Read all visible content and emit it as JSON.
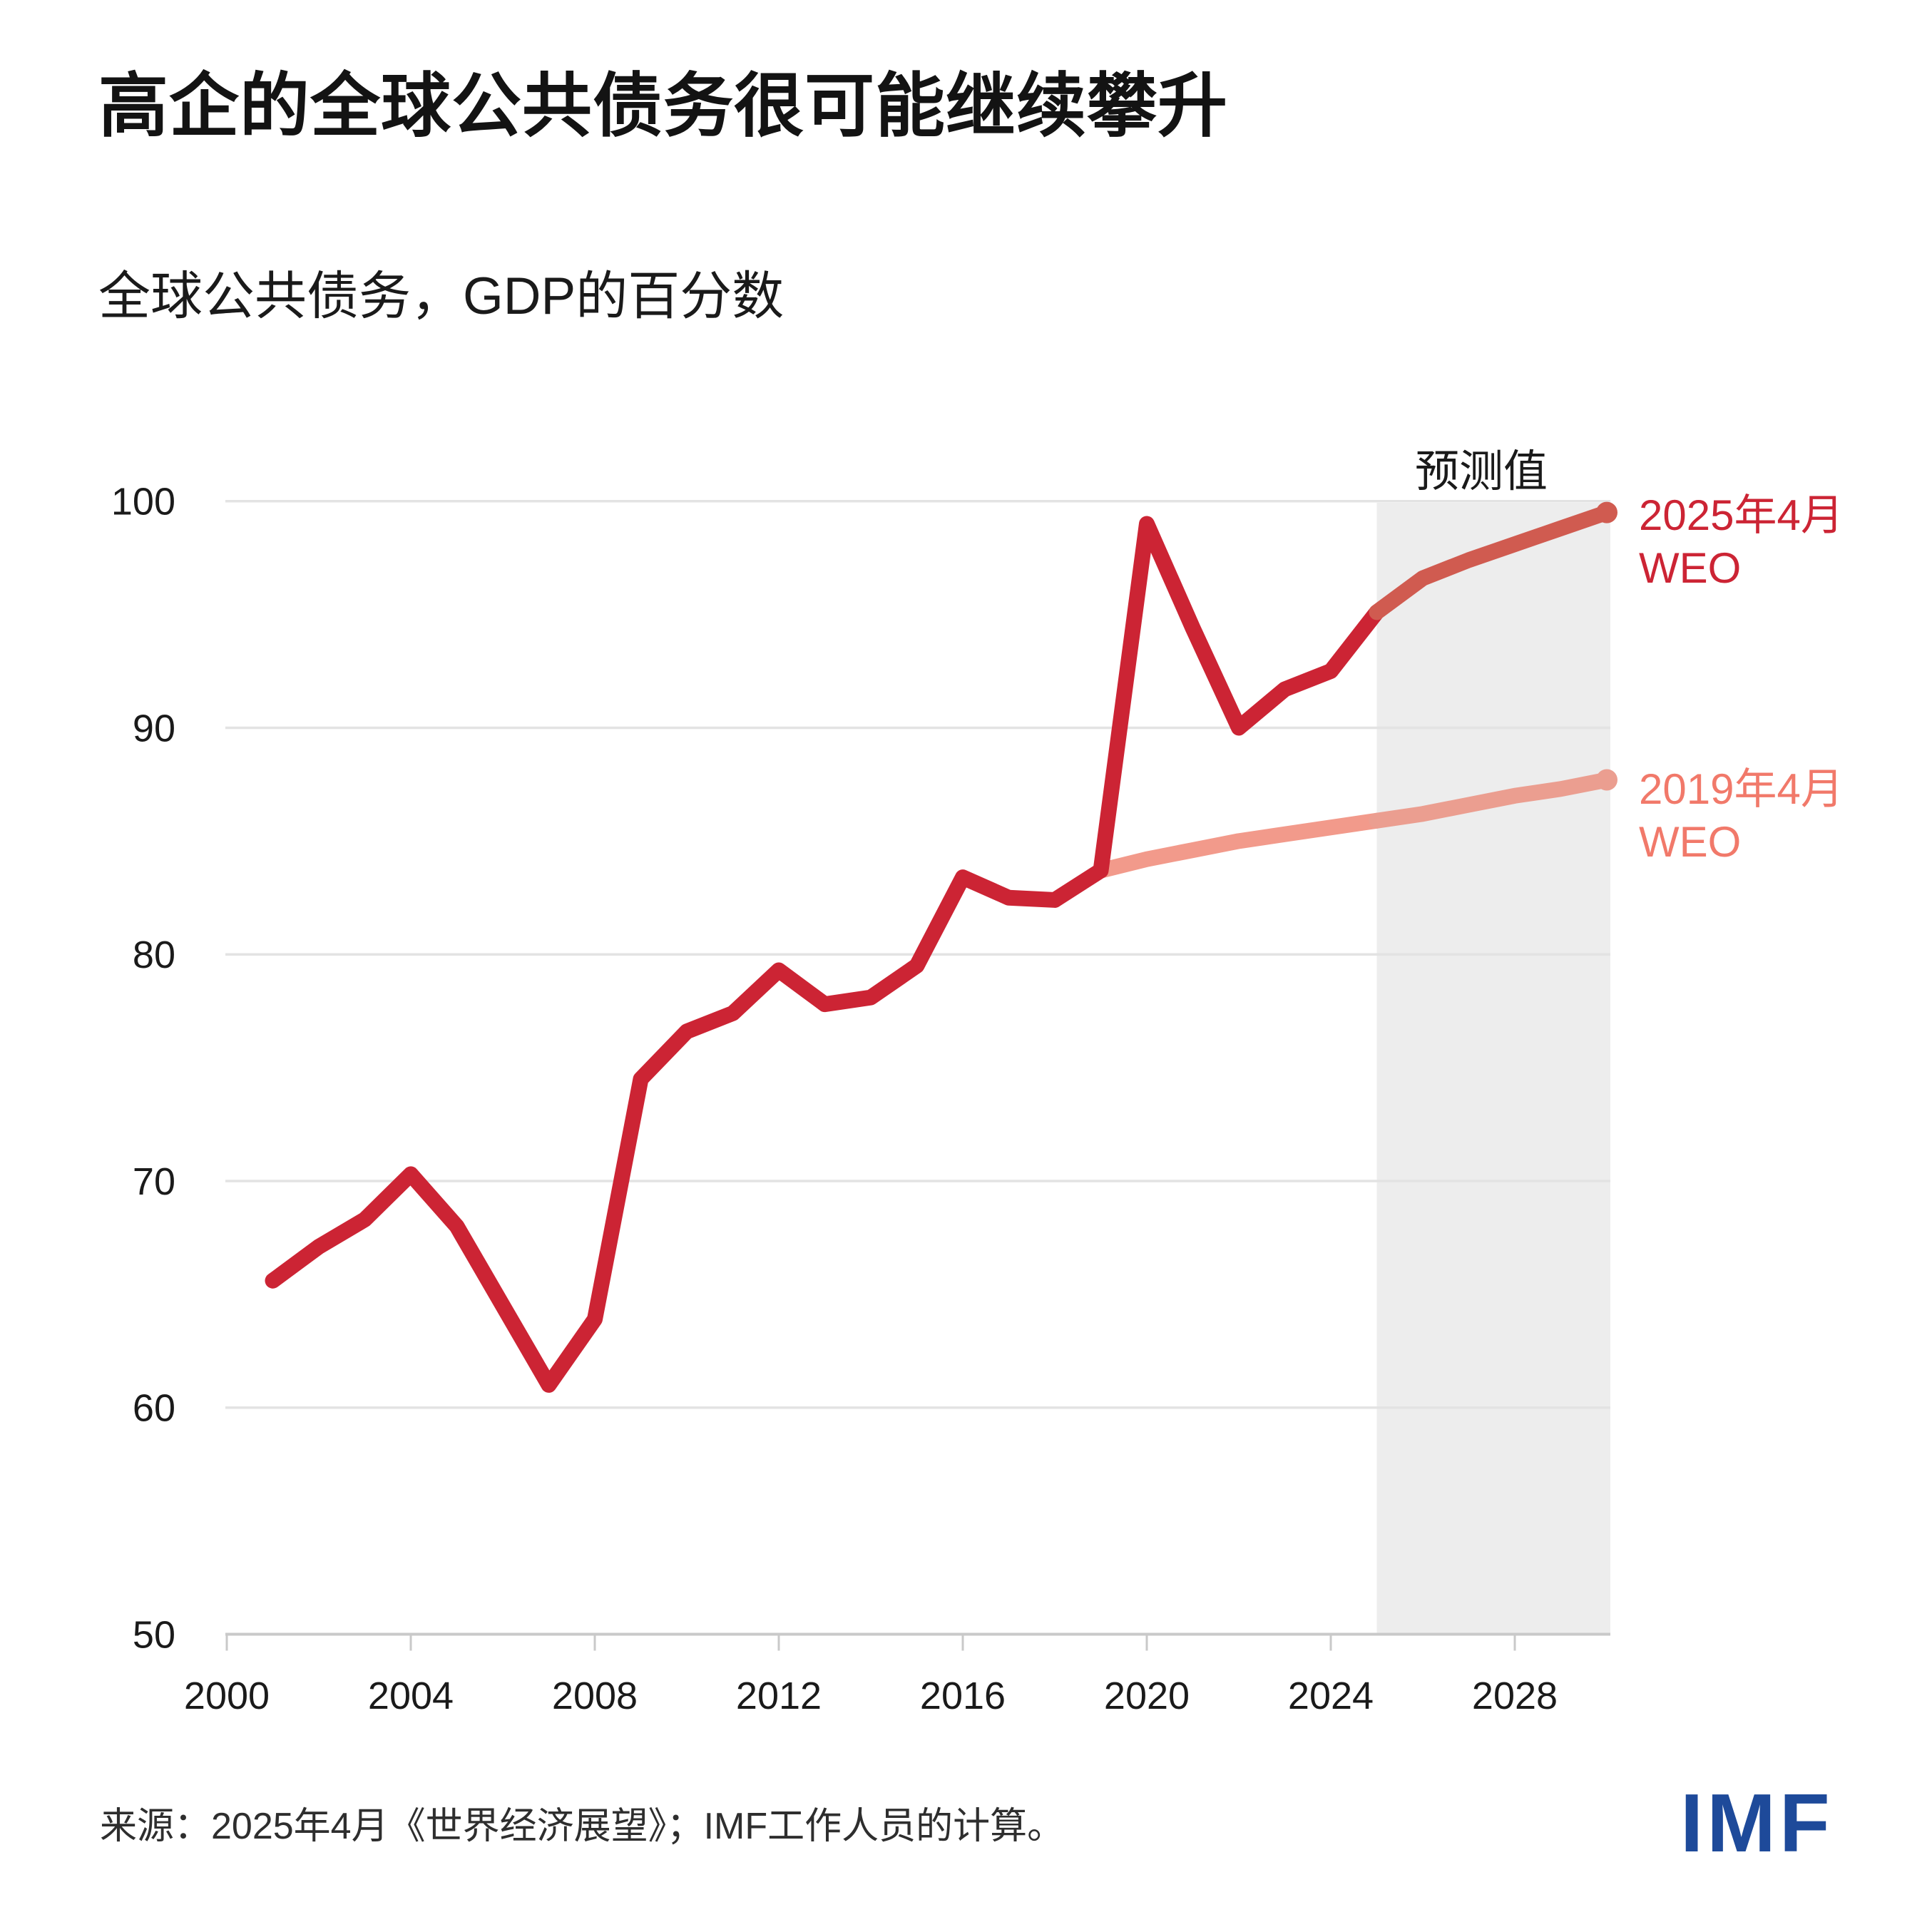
{
  "title": "高企的全球公共债务很可能继续攀升",
  "subtitle": "全球公共债务，GDP的百分数",
  "forecast_label": "预测值",
  "source": "来源：2025年4月《世界经济展望》；IMF工作人员的计算。",
  "logo_text": "IMF",
  "colors": {
    "red_line": "#CC2434",
    "red_forecast": "#D05B50",
    "salmon_line": "#F29A8B",
    "salmon_forecast": "#EB9E90",
    "legend_red": "#CC2434",
    "legend_salmon": "#F1796A",
    "band": "#EDEDED",
    "gridline": "#E3E3E3",
    "axis": "#C9C9C9",
    "tick_text": "#1A1A1A",
    "title_text": "#131313",
    "imf_blue": "#1E4A9A"
  },
  "legend": [
    {
      "line1": "2025年4月",
      "line2": "WEO"
    },
    {
      "line1": "2019年4月",
      "line2": "WEO"
    }
  ],
  "chart_data": {
    "type": "line",
    "title": "全球公共债务，GDP的百分数",
    "xlabel": "",
    "ylabel": "GDP的百分数",
    "xlim": [
      2000,
      2030
    ],
    "ylim": [
      50,
      100
    ],
    "xticks": [
      2000,
      2004,
      2008,
      2012,
      2016,
      2020,
      2024,
      2028
    ],
    "yticks": [
      50,
      60,
      70,
      80,
      90,
      100
    ],
    "grid": "horizontal",
    "legend_position": "right",
    "forecast_start": 2025,
    "forecast_band": {
      "from": 2025,
      "to": 2030,
      "label": "预测值"
    },
    "series": [
      {
        "name": "2025年4月 WEO",
        "x": [
          2001,
          2002,
          2003,
          2004,
          2005,
          2006,
          2007,
          2008,
          2009,
          2010,
          2011,
          2012,
          2013,
          2014,
          2015,
          2016,
          2017,
          2018,
          2019,
          2020,
          2021,
          2022,
          2023,
          2024,
          2025,
          2026,
          2027,
          2028,
          2029,
          2030
        ],
        "values": [
          65.6,
          67.1,
          68.3,
          70.3,
          68.0,
          64.5,
          61.0,
          63.9,
          74.5,
          76.6,
          77.4,
          79.3,
          77.8,
          78.1,
          79.5,
          83.4,
          82.5,
          82.4,
          83.7,
          99.0,
          94.4,
          90.0,
          91.7,
          92.5,
          95.1,
          96.6,
          97.4,
          98.1,
          98.8,
          99.5
        ]
      },
      {
        "name": "2019年4月 WEO",
        "x": [
          2019,
          2020,
          2021,
          2022,
          2023,
          2024,
          2025,
          2026,
          2027,
          2028,
          2029,
          2030
        ],
        "values": [
          83.7,
          84.2,
          84.6,
          85.0,
          85.3,
          85.6,
          85.9,
          86.2,
          86.6,
          87.0,
          87.3,
          87.7
        ]
      }
    ]
  }
}
